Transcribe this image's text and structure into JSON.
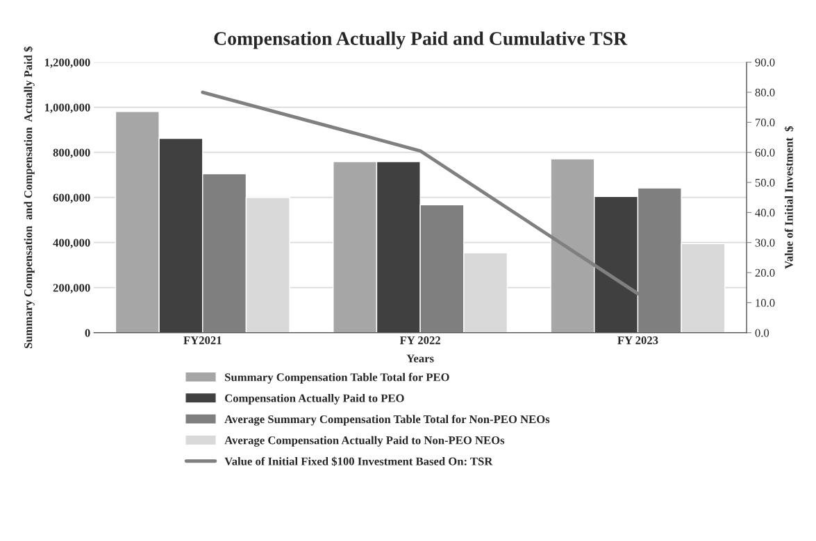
{
  "chart_data": {
    "type": "bar",
    "title": "Compensation Actually Paid and Cumulative TSR",
    "xlabel": "Years",
    "ylabel": "Summary Compensation  and Compensation  Actually Paid $",
    "y2label": "Value of Initial Investment  $",
    "categories": [
      "FY2021",
      "FY 2022",
      "FY 2023"
    ],
    "series": [
      {
        "name": "Summary Compensation Table Total for PEO",
        "color": "#a6a6a6",
        "values": [
          981000,
          759000,
          771000
        ]
      },
      {
        "name": "Compensation Actually Paid to PEO",
        "color": "#404040",
        "values": [
          862000,
          759000,
          604000
        ]
      },
      {
        "name": "Average Summary Compensation Table Total for Non-PEO NEOs",
        "color": "#7f7f7f",
        "values": [
          705000,
          567000,
          642000
        ]
      },
      {
        "name": "Average Compensation Actually Paid to Non-PEO NEOs",
        "color": "#d9d9d9",
        "values": [
          600000,
          354000,
          395000
        ]
      },
      {
        "name": "Value of Initial Fixed $100 Investment Based On: TSR",
        "type": "line",
        "axis": "y2",
        "color": "#808080",
        "values": [
          80.0,
          60.5,
          13.0
        ]
      }
    ],
    "ylim": [
      0,
      1200000
    ],
    "yticks": [
      {
        "value": 0,
        "label": "0"
      },
      {
        "value": 200000,
        "label": "200,000"
      },
      {
        "value": 400000,
        "label": "400,000"
      },
      {
        "value": 600000,
        "label": "600,000"
      },
      {
        "value": 800000,
        "label": "800,000"
      },
      {
        "value": 1000000,
        "label": "1,000,000"
      },
      {
        "value": 1200000,
        "label": "1,200,000"
      }
    ],
    "y2lim": [
      0,
      90
    ],
    "y2ticks": [
      {
        "value": 0,
        "label": "0.0"
      },
      {
        "value": 10,
        "label": "10.0"
      },
      {
        "value": 20,
        "label": "20.0"
      },
      {
        "value": 30,
        "label": "30.0"
      },
      {
        "value": 40,
        "label": "40.0"
      },
      {
        "value": 50,
        "label": "50.0"
      },
      {
        "value": 60,
        "label": "60.0"
      },
      {
        "value": 70,
        "label": "70.0"
      },
      {
        "value": 80,
        "label": "80.0"
      },
      {
        "value": 90,
        "label": "90.0"
      }
    ],
    "grid": "y",
    "legend": "bottom"
  }
}
